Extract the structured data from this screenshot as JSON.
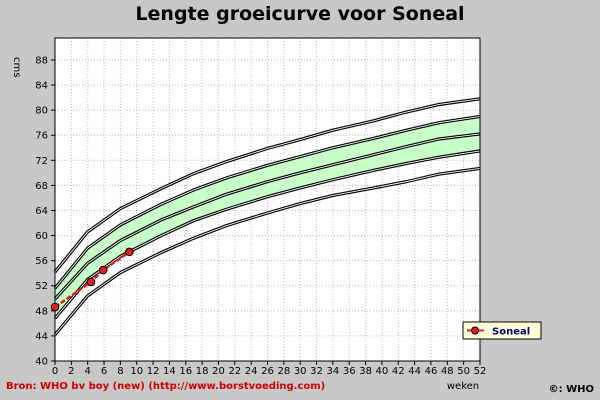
{
  "chart_data": {
    "type": "line",
    "title": "Lengte groeicurve voor Soneal",
    "ylabel": "cms",
    "xlabel": "weken",
    "x_ticks": [
      0,
      2,
      4,
      6,
      8,
      10,
      12,
      14,
      16,
      18,
      20,
      22,
      24,
      26,
      28,
      30,
      32,
      34,
      36,
      38,
      40,
      42,
      44,
      46,
      48,
      50,
      52
    ],
    "y_ticks": [
      40,
      44,
      48,
      52,
      56,
      60,
      64,
      68,
      72,
      76,
      80,
      84,
      88
    ],
    "xlim": [
      0,
      52
    ],
    "ylim": [
      40,
      91.5
    ],
    "grid": true,
    "shaded_band": {
      "between": [
        "P15",
        "P85"
      ],
      "color": "#c8ffc8"
    },
    "percentile_curves": [
      {
        "name": "P3",
        "x": [
          0,
          4,
          8,
          13,
          17,
          21,
          26,
          30,
          34,
          39,
          43,
          47,
          52
        ],
        "values": [
          44.2,
          50.4,
          54.1,
          57.3,
          59.6,
          61.6,
          63.6,
          65.1,
          66.4,
          67.6,
          68.6,
          69.8,
          70.7
        ]
      },
      {
        "name": "P15",
        "x": [
          0,
          4,
          8,
          13,
          17,
          21,
          26,
          30,
          34,
          39,
          43,
          47,
          52
        ],
        "values": [
          46.8,
          53.0,
          56.7,
          60.0,
          62.4,
          64.2,
          66.2,
          67.6,
          68.9,
          70.4,
          71.5,
          72.5,
          73.5
        ]
      },
      {
        "name": "P50",
        "x": [
          0,
          4,
          8,
          13,
          17,
          21,
          26,
          30,
          34,
          39,
          43,
          47,
          52
        ],
        "values": [
          49.9,
          55.6,
          59.2,
          62.5,
          64.6,
          66.6,
          68.6,
          70.0,
          71.3,
          72.9,
          74.2,
          75.4,
          76.2
        ]
      },
      {
        "name": "P85",
        "x": [
          0,
          4,
          8,
          13,
          17,
          21,
          26,
          30,
          34,
          39,
          43,
          47,
          52
        ],
        "values": [
          51.6,
          58.0,
          61.7,
          65.0,
          67.3,
          69.2,
          71.2,
          72.6,
          74.0,
          75.5,
          76.8,
          78.0,
          79.0
        ]
      },
      {
        "name": "P97",
        "x": [
          0,
          4,
          8,
          13,
          17,
          21,
          26,
          30,
          34,
          39,
          43,
          47,
          52
        ],
        "values": [
          54.2,
          60.6,
          64.3,
          67.5,
          69.9,
          71.8,
          73.9,
          75.3,
          76.8,
          78.3,
          79.7,
          80.9,
          81.8
        ]
      }
    ],
    "series": [
      {
        "name": "Soneal",
        "color": "#e02020",
        "x": [
          0,
          4.4,
          5.9,
          9.1
        ],
        "values": [
          48.6,
          52.6,
          54.5,
          57.4
        ]
      }
    ],
    "legend": {
      "position": "bottom-right"
    },
    "source": "Bron: WHO bv boy (new) (http://www.borstvoeding.com)",
    "copyright": "©: WHO"
  }
}
